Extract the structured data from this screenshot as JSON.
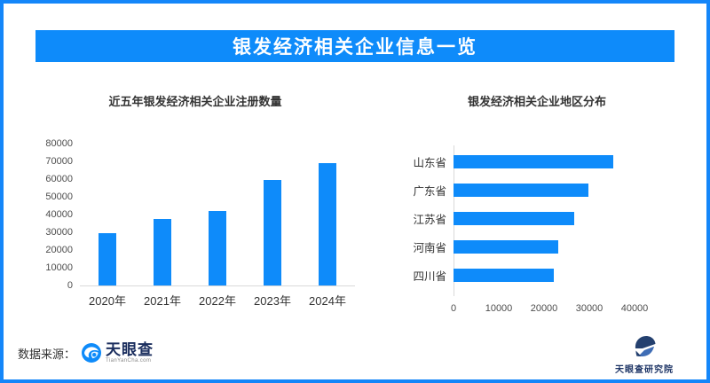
{
  "banner": {
    "title": "银发经济相关企业信息一览",
    "bg_color": "#0e8bfa",
    "text_color": "#ffffff"
  },
  "frame_border_color": "#1486f9",
  "accent_color": "#0e8bfa",
  "chart_data": [
    {
      "type": "bar",
      "orientation": "vertical",
      "title": "近五年银发经济相关企业注册数量",
      "categories": [
        "2020年",
        "2021年",
        "2022年",
        "2023年",
        "2024年"
      ],
      "values": [
        29500,
        37500,
        41800,
        59500,
        69200
      ],
      "ylim": [
        0,
        80000
      ],
      "yticks": [
        0,
        10000,
        20000,
        30000,
        40000,
        50000,
        60000,
        70000,
        80000
      ],
      "bar_color": "#0e8bfa",
      "grid": false,
      "legend": "none"
    },
    {
      "type": "bar",
      "orientation": "horizontal",
      "title": "银发经济相关企业地区分布",
      "categories": [
        "山东省",
        "广东省",
        "江苏省",
        "河南省",
        "四川省"
      ],
      "values": [
        35200,
        29900,
        26600,
        23100,
        22200
      ],
      "xlim": [
        0,
        47000
      ],
      "xticks": [
        0,
        10000,
        20000,
        30000,
        40000
      ],
      "bar_color": "#0e8bfa",
      "grid": false,
      "legend": "none"
    }
  ],
  "footer": {
    "source_label": "数据来源：",
    "logo_name": "天眼查",
    "logo_subtext": "TianYanCha.com",
    "institute_name": "天眼查研究院"
  }
}
